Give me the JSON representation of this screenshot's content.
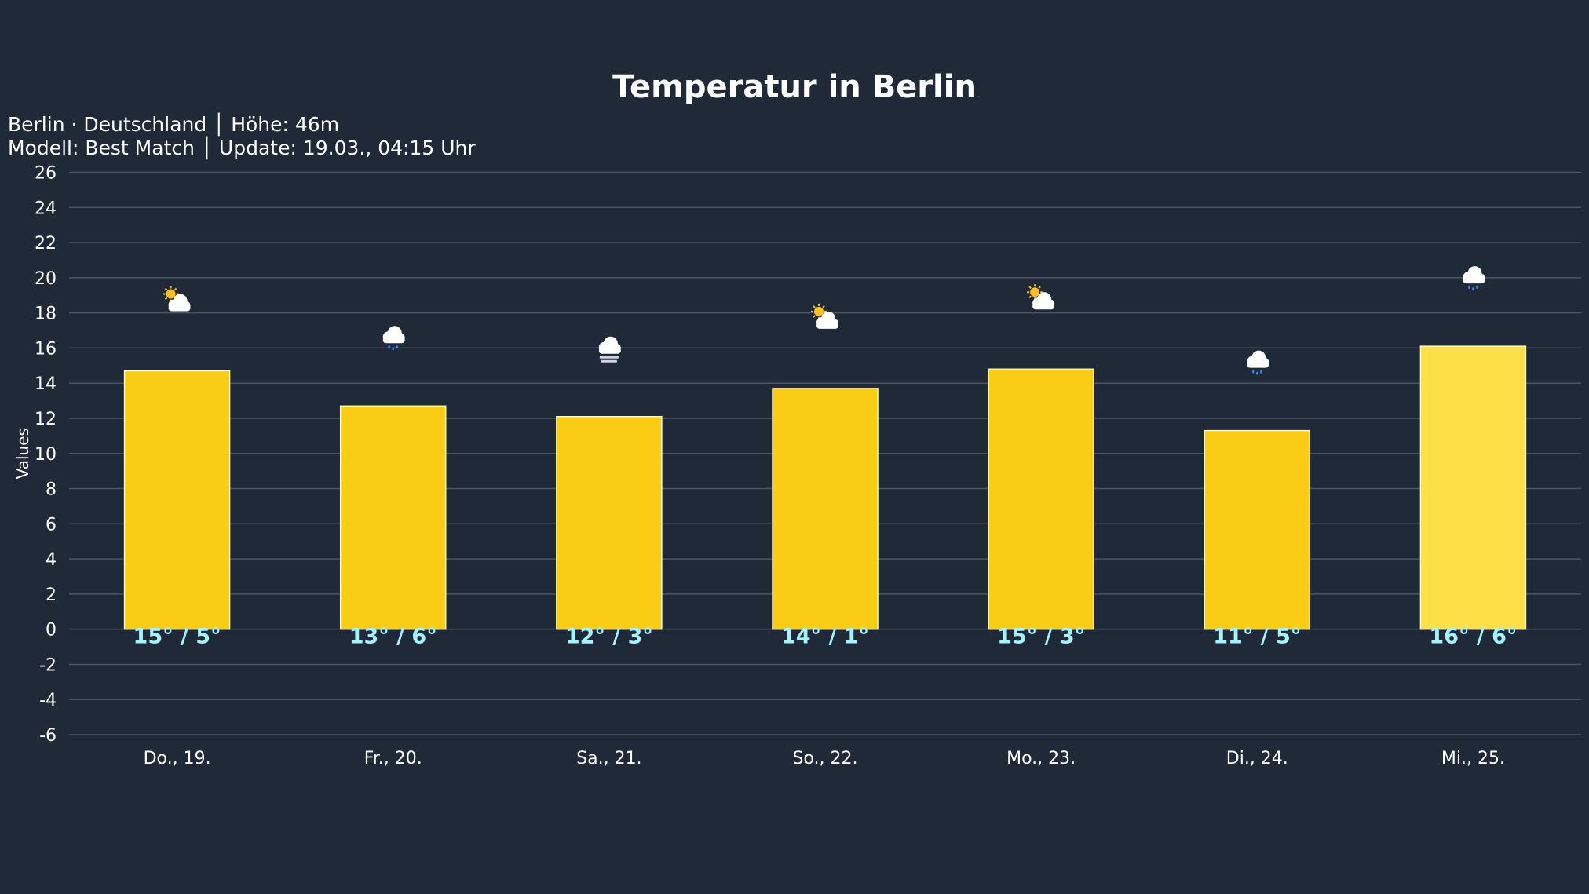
{
  "title": "Temperatur in Berlin",
  "subtitle_line1": "Berlin · Deutschland │ Höhe: 46m",
  "subtitle_line2": "Modell: Best Match │ Update: 19.03., 04:15 Uhr",
  "chart_data": {
    "type": "bar",
    "ylabel": "Values",
    "ylim": [
      -6,
      26
    ],
    "yticks": [
      -6,
      -4,
      -2,
      0,
      2,
      4,
      6,
      8,
      10,
      12,
      14,
      16,
      18,
      20,
      22,
      24,
      26
    ],
    "grid": true,
    "categories": [
      "Do., 19.",
      "Fr., 20.",
      "Sa., 21.",
      "So., 22.",
      "Mo., 23.",
      "Di., 24.",
      "Mi., 25."
    ],
    "values": [
      14.7,
      12.7,
      12.1,
      13.7,
      14.8,
      11.3,
      16.1
    ],
    "data_labels": [
      "15° / 5°",
      "13° / 6°",
      "12° / 3°",
      "14° / 1°",
      "15° / 3°",
      "11° / 5°",
      "16° / 6°"
    ],
    "icons": [
      "partly-cloudy-icon",
      "rain-icon",
      "fog-icon",
      "partly-cloudy-icon",
      "partly-cloudy-icon",
      "rain-icon",
      "rain-icon"
    ],
    "bar_colors": [
      "#facc15",
      "#facc15",
      "#facc15",
      "#facc15",
      "#facc15",
      "#facc15",
      "#fde047"
    ],
    "label_color": "#a5f3fc"
  }
}
